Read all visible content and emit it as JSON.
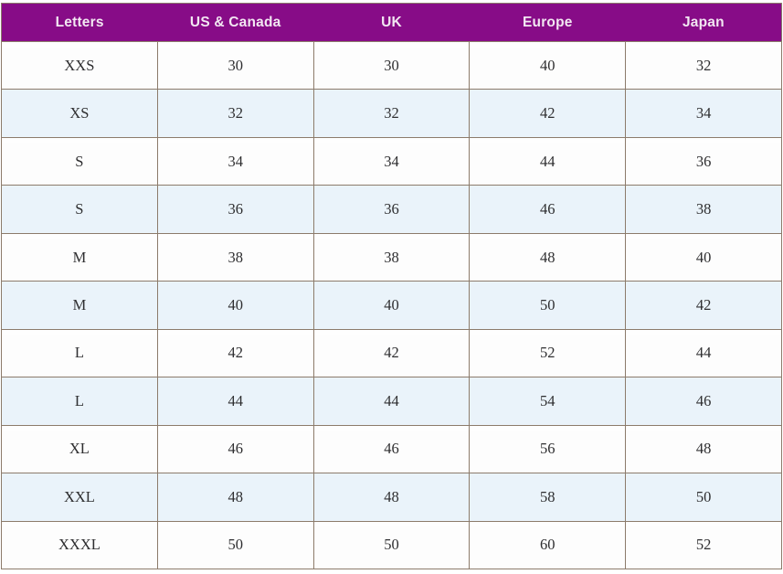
{
  "chart_data": {
    "type": "table",
    "columns": [
      "Letters",
      "US & Canada",
      "UK",
      "Europe",
      "Japan"
    ],
    "rows": [
      [
        "XXS",
        "30",
        "30",
        "40",
        "32"
      ],
      [
        "XS",
        "32",
        "32",
        "42",
        "34"
      ],
      [
        "S",
        "34",
        "34",
        "44",
        "36"
      ],
      [
        "S",
        "36",
        "36",
        "46",
        "38"
      ],
      [
        "M",
        "38",
        "38",
        "48",
        "40"
      ],
      [
        "M",
        "40",
        "40",
        "50",
        "42"
      ],
      [
        "L",
        "42",
        "42",
        "52",
        "44"
      ],
      [
        "L",
        "44",
        "44",
        "54",
        "46"
      ],
      [
        "XL",
        "46",
        "46",
        "56",
        "48"
      ],
      [
        "XXL",
        "48",
        "48",
        "58",
        "50"
      ],
      [
        "XXXL",
        "50",
        "50",
        "60",
        "52"
      ]
    ],
    "layout": {
      "legend": "none",
      "grid": "on",
      "striping": "alternate rows starting white",
      "column_count": 5,
      "row_count": 11
    }
  },
  "colors": {
    "header_bg": "#870c87",
    "header_text": "#f2e7f2",
    "row_bg": "#fdfdfd",
    "row_alt_bg": "#eaf3fa",
    "border": "#8c7b6b",
    "cell_text": "#2e2e30"
  }
}
